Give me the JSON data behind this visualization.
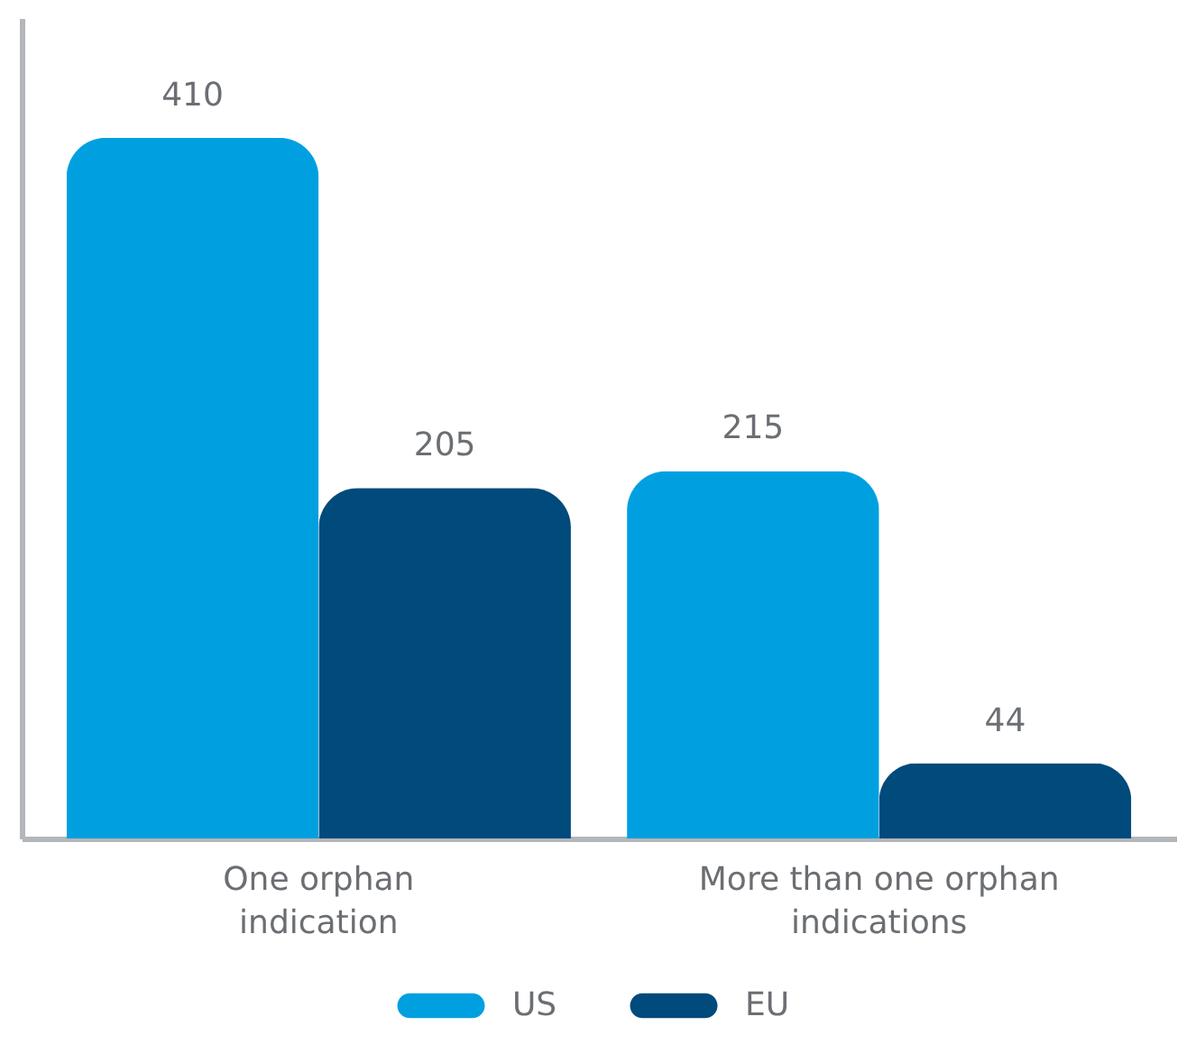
{
  "chart_data": {
    "type": "bar",
    "categories": [
      "One orphan indication",
      "More than one orphan indications"
    ],
    "series": [
      {
        "name": "US",
        "color": "#00a0e0",
        "values": [
          410,
          215
        ]
      },
      {
        "name": "EU",
        "color": "#004a7c",
        "values": [
          205,
          44
        ]
      }
    ],
    "ylim": [
      0,
      480
    ],
    "data_labels": true,
    "tick_labels": "x",
    "grid": false,
    "legend": "bottom"
  }
}
